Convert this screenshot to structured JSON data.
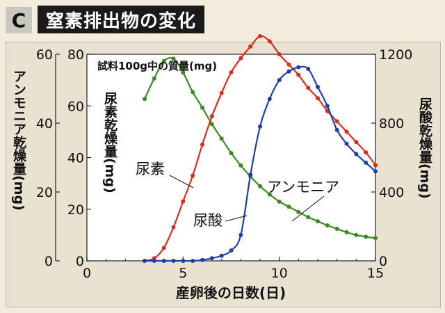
{
  "header": {
    "badge": "C",
    "title": "窒素排出物の変化"
  },
  "chart_data": {
    "type": "line",
    "title": "試料100g中の質量(mg)",
    "xlabel": "産卵後の日数(日)",
    "xlim": [
      0,
      15
    ],
    "xticks": [
      0,
      5,
      10,
      15
    ],
    "axes": {
      "left_outer": {
        "label": "アンモニア乾燥量(mg)",
        "lim": [
          0,
          60
        ],
        "ticks": [
          0,
          20,
          40,
          60
        ]
      },
      "left_inner": {
        "label": "尿素乾燥量(mg)",
        "lim": [
          0,
          80
        ],
        "ticks": [
          0,
          20,
          40,
          60,
          80
        ]
      },
      "right": {
        "label": "尿酸乾燥量(mg)",
        "lim": [
          0,
          1200
        ],
        "ticks": [
          0,
          400,
          800,
          1200
        ]
      }
    },
    "series": [
      {
        "name": "アンモニア",
        "color": "#3a8a22",
        "axis": "left_outer",
        "x": [
          3,
          3.5,
          4,
          4.5,
          5,
          5.5,
          6,
          6.5,
          7,
          7.5,
          8,
          8.5,
          9,
          9.5,
          10,
          10.5,
          11,
          11.5,
          12,
          12.5,
          13,
          13.5,
          14,
          14.5,
          15
        ],
        "y": [
          47,
          53,
          58,
          58.7,
          54.7,
          49,
          44.5,
          39.7,
          35.5,
          31.3,
          27.7,
          24.5,
          21.7,
          19.3,
          17.2,
          15.7,
          14.2,
          12.7,
          11.5,
          10.3,
          9.3,
          8.3,
          7.5,
          7.0,
          6.6
        ]
      },
      {
        "name": "尿素",
        "color": "#d92b1e",
        "axis": "left_inner",
        "x": [
          3,
          3.5,
          4,
          4.5,
          5,
          5.5,
          6,
          6.5,
          7,
          7.5,
          8,
          8.5,
          9,
          9.5,
          10,
          10.5,
          11,
          11.5,
          12,
          12.5,
          13,
          13.5,
          14,
          14.5,
          15
        ],
        "y": [
          0,
          1,
          5,
          13,
          23,
          33,
          45,
          56,
          65,
          73,
          78.5,
          83,
          87,
          85,
          80,
          76,
          72,
          67,
          63,
          58,
          54,
          50,
          46,
          42,
          37
        ]
      },
      {
        "name": "尿酸",
        "color": "#1e3fa8",
        "axis": "right",
        "x": [
          3,
          3.5,
          4,
          4.5,
          5,
          5.5,
          6,
          6.5,
          7,
          7.5,
          8,
          8.5,
          9,
          9.5,
          10,
          10.5,
          11,
          11.5,
          12,
          12.5,
          13,
          13.5,
          14,
          14.5,
          15
        ],
        "y": [
          0,
          0,
          0,
          0,
          0,
          0,
          5,
          15,
          30,
          60,
          150,
          500,
          780,
          940,
          1050,
          1100,
          1125,
          1115,
          1010,
          900,
          760,
          680,
          620,
          570,
          520
        ]
      }
    ]
  }
}
